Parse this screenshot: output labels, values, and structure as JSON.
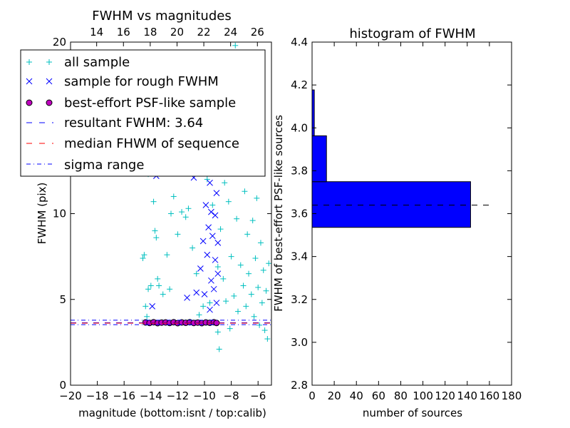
{
  "chart_data": [
    {
      "type": "scatter",
      "title": "FWHM vs magnitudes",
      "xlabel": "magnitude (bottom:isnt / top:calib)",
      "ylabel": "FWHM (pix)",
      "xlim": [
        -20,
        -5
      ],
      "ylim": [
        0,
        20
      ],
      "xticks": [
        -20,
        -18,
        -16,
        -14,
        -12,
        -10,
        -8,
        -6
      ],
      "xtick_labels": [
        "−20",
        "−18",
        "−16",
        "−14",
        "−12",
        "−10",
        "−8",
        "−6"
      ],
      "yticks": [
        0,
        5,
        10,
        20
      ],
      "ytick_labels": [
        "0",
        "5",
        "10",
        "20"
      ],
      "top_axis": {
        "ticks": [
          14,
          16,
          18,
          20,
          22,
          24,
          26
        ],
        "tick_labels": [
          "14",
          "16",
          "18",
          "20",
          "22",
          "24",
          "26"
        ],
        "offset": 32.05
      },
      "grid": false,
      "legend_position": "upper-left",
      "legend": [
        {
          "label": "all sample",
          "marker": "plus",
          "color": "#00bfbf"
        },
        {
          "label": "sample for rough FWHM",
          "marker": "x",
          "color": "#0000ff"
        },
        {
          "label": "best-effort PSF-like sample",
          "marker": "circle",
          "color": "#bf00bf"
        },
        {
          "label": "resultant FWHM: 3.64",
          "marker": "dashed-line",
          "color": "#0000ff"
        },
        {
          "label": "median FHWM of sequence",
          "marker": "dashed-line",
          "color": "#ff0000"
        },
        {
          "label": "sigma range",
          "marker": "dashdot-line",
          "color": "#0000ff"
        }
      ],
      "series": [
        {
          "name": "all sample",
          "marker": "plus",
          "color": "#00bfbf",
          "points": [
            [
              -14.6,
              7.4
            ],
            [
              -14.5,
              7.6
            ],
            [
              -14.4,
              4.6
            ],
            [
              -14.3,
              4.0
            ],
            [
              -14.2,
              5.6
            ],
            [
              -14.2,
              12.3
            ],
            [
              -14.0,
              5.8
            ],
            [
              -13.8,
              10.7
            ],
            [
              -13.7,
              9.0
            ],
            [
              -13.6,
              8.6
            ],
            [
              -13.5,
              6.2
            ],
            [
              -13.4,
              5.8
            ],
            [
              -13.1,
              5.3
            ],
            [
              -12.8,
              7.6
            ],
            [
              -12.6,
              5.6
            ],
            [
              -12.5,
              10.0
            ],
            [
              -12.3,
              11.0
            ],
            [
              -12.0,
              8.8
            ],
            [
              -11.7,
              10.1
            ],
            [
              -11.4,
              9.8
            ],
            [
              -11.2,
              10.3
            ],
            [
              -10.9,
              8.0
            ],
            [
              -10.6,
              6.5
            ],
            [
              -10.4,
              4.1
            ],
            [
              -10.1,
              4.6
            ],
            [
              -10.0,
              12.9
            ],
            [
              -9.8,
              12.0
            ],
            [
              -9.6,
              4.8
            ],
            [
              -9.4,
              10.5
            ],
            [
              -9.2,
              13.4
            ],
            [
              -9.0,
              3.1
            ],
            [
              -9.0,
              6.9
            ],
            [
              -8.9,
              2.1
            ],
            [
              -8.8,
              9.1
            ],
            [
              -8.7,
              14.4
            ],
            [
              -8.6,
              6.2
            ],
            [
              -8.5,
              11.8
            ],
            [
              -8.4,
              4.9
            ],
            [
              -8.3,
              17.6
            ],
            [
              -8.2,
              10.7
            ],
            [
              -8.1,
              3.3
            ],
            [
              -8.0,
              7.5
            ],
            [
              -7.9,
              12.6
            ],
            [
              -7.8,
              5.2
            ],
            [
              -7.7,
              19.8
            ],
            [
              -7.6,
              9.7
            ],
            [
              -7.5,
              4.3
            ],
            [
              -7.4,
              15.6
            ],
            [
              -7.3,
              7.0
            ],
            [
              -7.2,
              13.3
            ],
            [
              -7.1,
              5.8
            ],
            [
              -7.0,
              11.3
            ],
            [
              -6.9,
              4.6
            ],
            [
              -6.8,
              8.8
            ],
            [
              -6.7,
              6.5
            ],
            [
              -6.6,
              12.8
            ],
            [
              -6.5,
              5.3
            ],
            [
              -6.4,
              9.6
            ],
            [
              -6.3,
              4.0
            ],
            [
              -6.2,
              7.4
            ],
            [
              -6.1,
              10.9
            ],
            [
              -6.0,
              5.7
            ],
            [
              -5.9,
              3.5
            ],
            [
              -5.8,
              8.3
            ],
            [
              -5.7,
              4.8
            ],
            [
              -5.6,
              6.7
            ],
            [
              -5.5,
              3.2
            ],
            [
              -5.4,
              5.5
            ],
            [
              -5.3,
              2.7
            ],
            [
              -5.2,
              7.1
            ]
          ]
        },
        {
          "name": "sample for rough FWHM",
          "marker": "x",
          "color": "#0000ff",
          "points": [
            [
              -13.9,
              4.6
            ],
            [
              -13.6,
              12.2
            ],
            [
              -12.2,
              12.8
            ],
            [
              -11.3,
              5.1
            ],
            [
              -11.0,
              12.6
            ],
            [
              -10.8,
              12.1
            ],
            [
              -10.6,
              5.4
            ],
            [
              -10.3,
              6.8
            ],
            [
              -10.1,
              8.4
            ],
            [
              -10.0,
              5.3
            ],
            [
              -9.9,
              10.5
            ],
            [
              -9.8,
              7.6
            ],
            [
              -9.7,
              9.2
            ],
            [
              -9.6,
              4.4
            ],
            [
              -9.6,
              11.8
            ],
            [
              -9.5,
              6.1
            ],
            [
              -9.5,
              10.1
            ],
            [
              -9.4,
              8.7
            ],
            [
              -9.3,
              5.6
            ],
            [
              -9.3,
              12.7
            ],
            [
              -9.2,
              7.3
            ],
            [
              -9.2,
              9.9
            ],
            [
              -9.1,
              4.8
            ],
            [
              -9.1,
              11.2
            ],
            [
              -9.0,
              6.5
            ],
            [
              -9.0,
              8.3
            ]
          ]
        },
        {
          "name": "best-effort PSF-like sample",
          "marker": "circle",
          "color": "#bf00bf",
          "points": [
            [
              -14.4,
              3.66
            ],
            [
              -14.1,
              3.63
            ],
            [
              -13.8,
              3.67
            ],
            [
              -13.5,
              3.62
            ],
            [
              -13.2,
              3.65
            ],
            [
              -12.9,
              3.66
            ],
            [
              -12.6,
              3.63
            ],
            [
              -12.3,
              3.67
            ],
            [
              -12.0,
              3.62
            ],
            [
              -11.7,
              3.66
            ],
            [
              -11.4,
              3.64
            ],
            [
              -11.1,
              3.67
            ],
            [
              -10.8,
              3.63
            ],
            [
              -10.5,
              3.65
            ],
            [
              -10.2,
              3.62
            ],
            [
              -9.9,
              3.66
            ],
            [
              -9.6,
              3.64
            ],
            [
              -9.3,
              3.67
            ],
            [
              -9.1,
              3.63
            ]
          ]
        }
      ],
      "hlines": [
        {
          "label": "resultant FWHM: 3.64",
          "y": 3.64,
          "style": "dashed",
          "color": "#0000ff"
        },
        {
          "label": "median FHWM of sequence",
          "y": 3.62,
          "style": "dashed",
          "color": "#ff0000"
        },
        {
          "label": "sigma range",
          "y": 3.79,
          "style": "dashdot",
          "color": "#0000ff"
        },
        {
          "label": "sigma range",
          "y": 3.53,
          "style": "dashdot",
          "color": "#0000ff"
        }
      ]
    },
    {
      "type": "bar",
      "orientation": "horizontal",
      "title": "histogram of FWHM",
      "xlabel": "number of sources",
      "ylabel": "FWHM of best-effort PSF-like sources",
      "xlim": [
        0,
        180
      ],
      "ylim": [
        2.8,
        4.4
      ],
      "xticks": [
        0,
        20,
        40,
        60,
        80,
        100,
        120,
        140,
        160,
        180
      ],
      "xtick_labels": [
        "0",
        "20",
        "40",
        "60",
        "80",
        "100",
        "120",
        "140",
        "160",
        "180"
      ],
      "yticks": [
        2.8,
        3.0,
        3.2,
        3.4,
        3.6,
        3.8,
        4.0,
        4.2,
        4.4
      ],
      "ytick_labels": [
        "2.8",
        "3.0",
        "3.2",
        "3.4",
        "3.6",
        "3.8",
        "4.0",
        "4.2",
        "4.4"
      ],
      "grid": false,
      "bar_color": "#0000ff",
      "bins": [
        {
          "y0": 3.536,
          "y1": 3.749,
          "count": 143
        },
        {
          "y0": 3.749,
          "y1": 3.963,
          "count": 13
        },
        {
          "y0": 3.963,
          "y1": 4.177,
          "count": 2
        }
      ],
      "hline": {
        "y": 3.64,
        "style": "dashed",
        "color": "#000000",
        "xmax": 160
      }
    }
  ]
}
